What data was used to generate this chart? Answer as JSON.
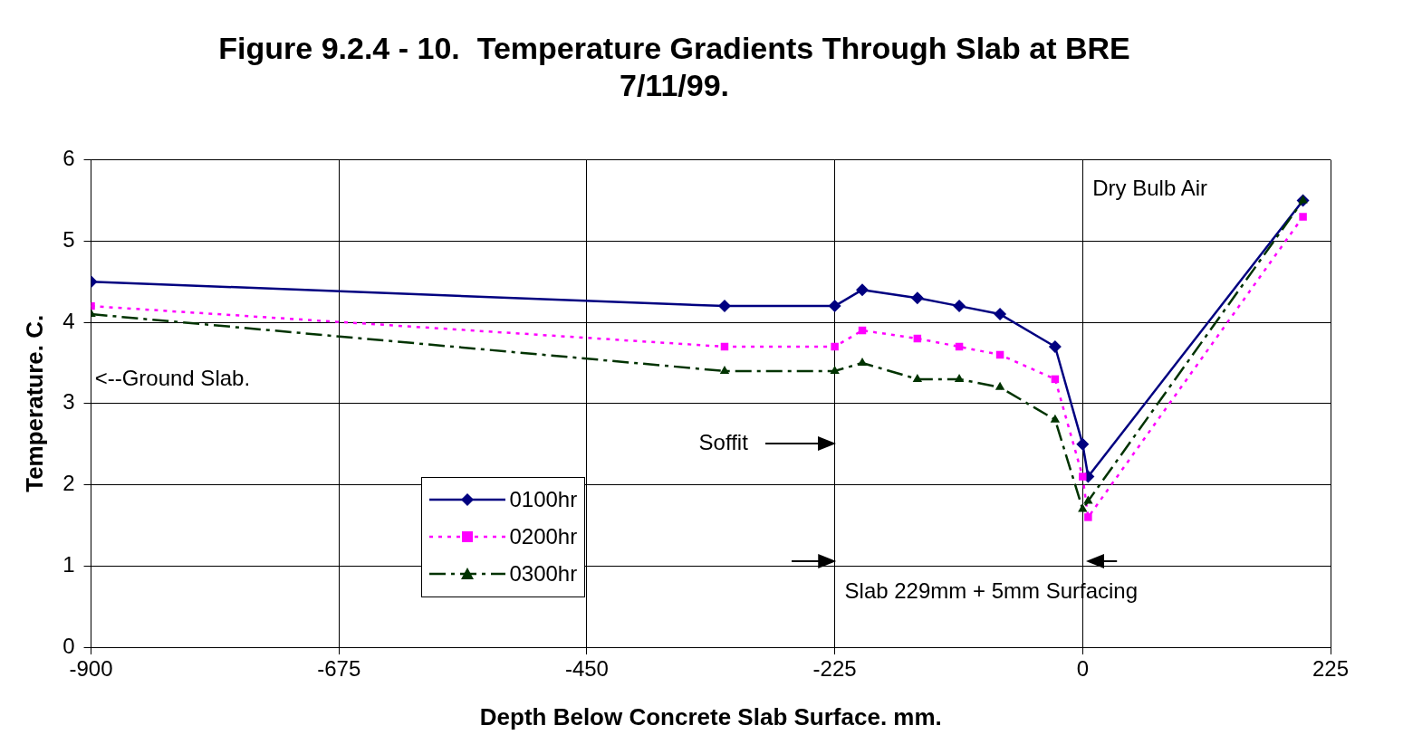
{
  "chart_data": {
    "type": "line",
    "title": "Figure 9.2.4 - 10.  Temperature Gradients Through Slab at BRE\n7/11/99.",
    "xlabel": "Depth Below Concrete Slab Surface. mm.",
    "ylabel": "Temperature. C.",
    "x": [
      -900,
      -325,
      -225,
      -200,
      -150,
      -112,
      -75,
      -25,
      0,
      5,
      200
    ],
    "series": [
      {
        "name": "0100hr",
        "color": "#000080",
        "marker": "diamond",
        "line_style": "solid",
        "values": [
          4.5,
          4.2,
          4.2,
          4.4,
          4.3,
          4.2,
          4.1,
          3.7,
          2.5,
          2.1,
          5.5
        ]
      },
      {
        "name": "0200hr",
        "color": "#ff00ff",
        "marker": "square",
        "line_style": "dotted",
        "values": [
          4.2,
          3.7,
          3.7,
          3.9,
          3.8,
          3.7,
          3.6,
          3.3,
          2.1,
          1.6,
          5.3
        ]
      },
      {
        "name": "0300hr",
        "color": "#003300",
        "marker": "triangle",
        "line_style": "dashed",
        "values": [
          4.1,
          3.4,
          3.4,
          3.5,
          3.3,
          3.3,
          3.2,
          2.8,
          1.7,
          1.8,
          5.5
        ]
      }
    ],
    "xlim": [
      -900,
      225
    ],
    "xticks": [
      -900,
      -675,
      -450,
      -225,
      0,
      225
    ],
    "ylim": [
      0,
      6
    ],
    "yticks": [
      0,
      1,
      2,
      3,
      4,
      5,
      6
    ],
    "grid": true,
    "legend": "bottom left",
    "annotations": [
      "Dry Bulb Air",
      "<--Ground Slab.",
      "Soffit",
      "Slab 229mm + 5mm Surfacing"
    ]
  }
}
